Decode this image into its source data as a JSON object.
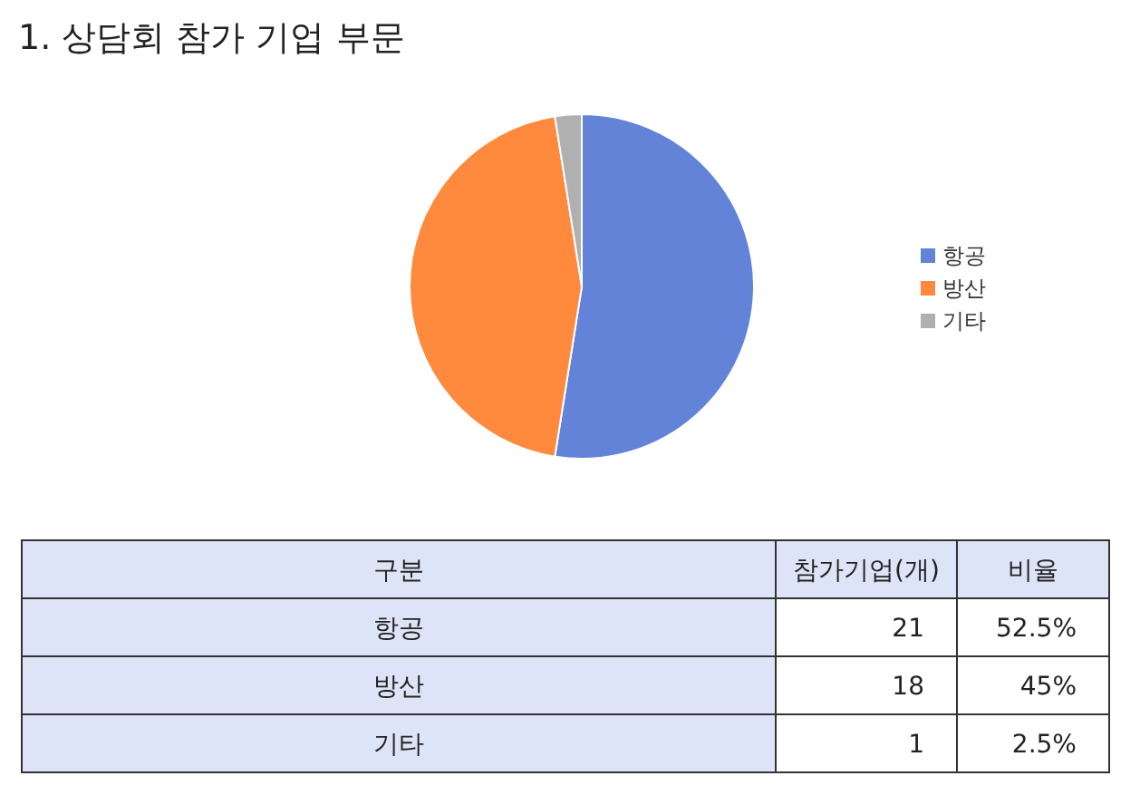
{
  "chart_data": [
    {
      "type": "pie",
      "title": "1. 상담회 참가 기업 부문",
      "categories": [
        "항공",
        "방산",
        "기타"
      ],
      "values": [
        52.5,
        45,
        2.5
      ],
      "colors": [
        "#6283d8",
        "#ff8a3d",
        "#b0b0b0"
      ],
      "legend": "right"
    },
    {
      "type": "other",
      "categories": [
        "항공",
        "방산",
        "기타"
      ],
      "annotations": [
        "구분"
      ],
      "data_labels": true,
      "series": [
        {
          "name": "참가기업(개)",
          "values": [
            21,
            18,
            1
          ]
        },
        {
          "name": "비율",
          "values": [
            52.5,
            45,
            2.5
          ],
          "value_labels": [
            "52.5%",
            "45%",
            "2.5%"
          ]
        }
      ]
    }
  ]
}
